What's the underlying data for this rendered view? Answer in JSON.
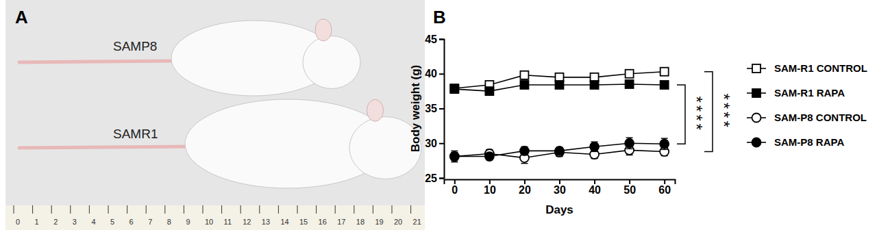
{
  "chart_data": {
    "type": "line",
    "panel_label": "B",
    "x_label": "Days",
    "y_label": "Body weight (g)",
    "x": [
      0,
      10,
      20,
      30,
      40,
      50,
      60
    ],
    "xlim": [
      -3,
      63
    ],
    "xticks": [
      0,
      10,
      20,
      30,
      40,
      50,
      60
    ],
    "ylim": [
      25,
      45
    ],
    "yticks": [
      25,
      30,
      35,
      40,
      45
    ],
    "legend": "right",
    "grid": false,
    "annotations": [
      "****",
      "****"
    ],
    "series": [
      {
        "name": "SAM-R1 CONTROL",
        "color": "#000000",
        "marker": "square-open",
        "values": [
          37.9,
          38.4,
          39.8,
          39.5,
          39.5,
          40.0,
          40.3
        ],
        "errors": [
          0.4,
          0.5,
          0.6,
          0.5,
          0.5,
          0.5,
          0.5
        ]
      },
      {
        "name": "SAM-R1 RAPA",
        "color": "#000000",
        "marker": "square",
        "values": [
          37.8,
          37.5,
          38.4,
          38.4,
          38.4,
          38.5,
          38.4
        ],
        "errors": [
          0.4,
          0.4,
          0.4,
          0.4,
          0.4,
          0.4,
          0.4
        ]
      },
      {
        "name": "SAM-P8 CONTROL",
        "color": "#000000",
        "marker": "circle-open",
        "values": [
          28.1,
          28.5,
          27.9,
          28.7,
          28.4,
          29.0,
          28.8
        ],
        "errors": [
          0.8,
          0.6,
          0.8,
          0.6,
          0.6,
          0.7,
          0.6
        ]
      },
      {
        "name": "SAM-P8 RAPA",
        "color": "#000000",
        "marker": "circle",
        "values": [
          28.1,
          28.1,
          28.9,
          28.9,
          29.5,
          30.0,
          29.9
        ],
        "errors": [
          0.6,
          0.5,
          0.6,
          0.5,
          0.7,
          0.8,
          0.8
        ]
      }
    ]
  },
  "photo": {
    "panel_label": "A",
    "labels": [
      "SAMP8",
      "SAMR1"
    ],
    "ruler_labels": [
      "0",
      "1",
      "2",
      "3",
      "4",
      "5",
      "6",
      "7",
      "8",
      "9",
      "10",
      "11",
      "12",
      "13",
      "14",
      "15",
      "16",
      "17",
      "18",
      "19",
      "20",
      "21"
    ]
  }
}
